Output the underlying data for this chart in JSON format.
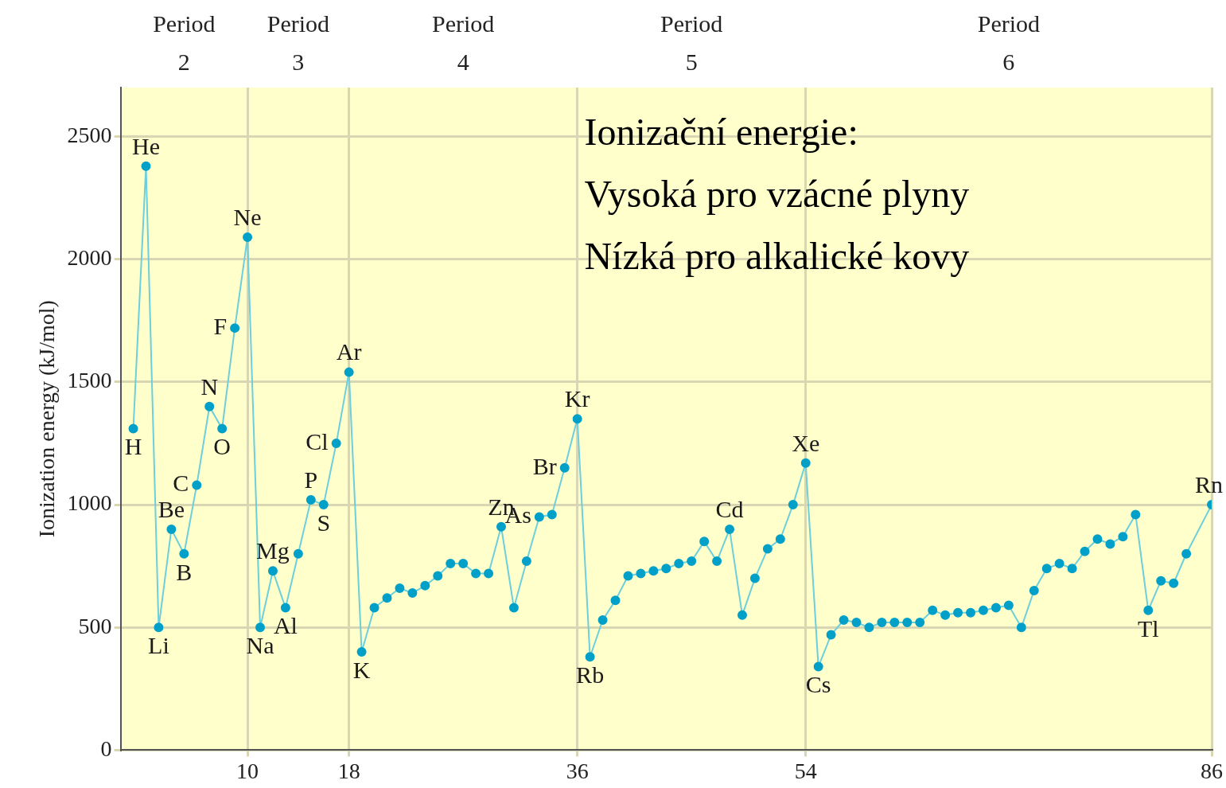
{
  "chart_data": {
    "type": "line",
    "ylabel": "Ionization energy (kJ/mol)",
    "x": [
      1,
      2,
      3,
      4,
      5,
      6,
      7,
      8,
      9,
      10,
      11,
      12,
      13,
      14,
      15,
      16,
      17,
      18,
      19,
      20,
      21,
      22,
      23,
      24,
      25,
      26,
      27,
      28,
      29,
      30,
      31,
      32,
      33,
      34,
      35,
      36,
      37,
      38,
      39,
      40,
      41,
      42,
      43,
      44,
      45,
      46,
      47,
      48,
      49,
      50,
      51,
      52,
      53,
      54,
      55,
      56,
      57,
      58,
      59,
      60,
      61,
      62,
      63,
      64,
      65,
      66,
      67,
      68,
      69,
      70,
      71,
      72,
      73,
      74,
      75,
      76,
      77,
      78,
      79,
      80,
      81,
      82,
      83,
      84,
      86
    ],
    "series": [
      {
        "color": "#00a0c8",
        "values": [
          1310,
          2380,
          500,
          900,
          800,
          1080,
          1400,
          1310,
          1720,
          2090,
          500,
          730,
          580,
          800,
          1020,
          1000,
          1250,
          1540,
          400,
          580,
          620,
          660,
          640,
          670,
          710,
          760,
          760,
          720,
          720,
          910,
          580,
          770,
          950,
          960,
          1150,
          1350,
          380,
          530,
          610,
          710,
          720,
          730,
          740,
          760,
          770,
          850,
          770,
          900,
          550,
          700,
          820,
          860,
          1000,
          1170,
          340,
          470,
          530,
          520,
          500,
          520,
          520,
          520,
          520,
          570,
          550,
          560,
          560,
          570,
          580,
          590,
          500,
          650,
          740,
          760,
          740,
          810,
          860,
          840,
          870,
          960,
          570,
          690,
          680,
          800,
          1000
        ]
      }
    ],
    "xlim": [
      0,
      86
    ],
    "xticks": [
      10,
      18,
      36,
      54,
      86
    ],
    "ylim": [
      0,
      2700
    ],
    "yticks": [
      0,
      500,
      1000,
      1500,
      2000,
      2500
    ],
    "grid": true,
    "legend": false,
    "marker": "circle",
    "line_style": "solid",
    "annotations": [
      "Period 2",
      "Period 3",
      "Period 4",
      "Period 5",
      "Period 6",
      "Ionizační energie:",
      "Vysoká pro vzácné plyny",
      "Nízká pro alkalické kovy",
      {
        "text": "H",
        "x": 1,
        "y": 1310
      },
      {
        "text": "He",
        "x": 2,
        "y": 2380
      },
      {
        "text": "Li",
        "x": 3,
        "y": 500
      },
      {
        "text": "Be",
        "x": 4,
        "y": 900
      },
      {
        "text": "B",
        "x": 5,
        "y": 800
      },
      {
        "text": "C",
        "x": 6,
        "y": 1080
      },
      {
        "text": "N",
        "x": 7,
        "y": 1400
      },
      {
        "text": "O",
        "x": 8,
        "y": 1310
      },
      {
        "text": "F",
        "x": 9,
        "y": 1720
      },
      {
        "text": "Ne",
        "x": 10,
        "y": 2090
      },
      {
        "text": "Na",
        "x": 11,
        "y": 500
      },
      {
        "text": "Mg",
        "x": 12,
        "y": 730
      },
      {
        "text": "Al",
        "x": 13,
        "y": 580
      },
      {
        "text": "P",
        "x": 15,
        "y": 1020
      },
      {
        "text": "S",
        "x": 16,
        "y": 1000
      },
      {
        "text": "Cl",
        "x": 17,
        "y": 1250
      },
      {
        "text": "Ar",
        "x": 18,
        "y": 1540
      },
      {
        "text": "K",
        "x": 19,
        "y": 400
      },
      {
        "text": "Zn",
        "x": 30,
        "y": 910
      },
      {
        "text": "As",
        "x": 33,
        "y": 950
      },
      {
        "text": "Br",
        "x": 35,
        "y": 1150
      },
      {
        "text": "Kr",
        "x": 36,
        "y": 1350
      },
      {
        "text": "Rb",
        "x": 37,
        "y": 380
      },
      {
        "text": "Cd",
        "x": 48,
        "y": 900
      },
      {
        "text": "Xe",
        "x": 54,
        "y": 1170
      },
      {
        "text": "Cs",
        "x": 55,
        "y": 340
      },
      {
        "text": "Tl",
        "x": 81,
        "y": 570
      },
      {
        "text": "Rn",
        "x": 86,
        "y": 1000
      }
    ]
  }
}
